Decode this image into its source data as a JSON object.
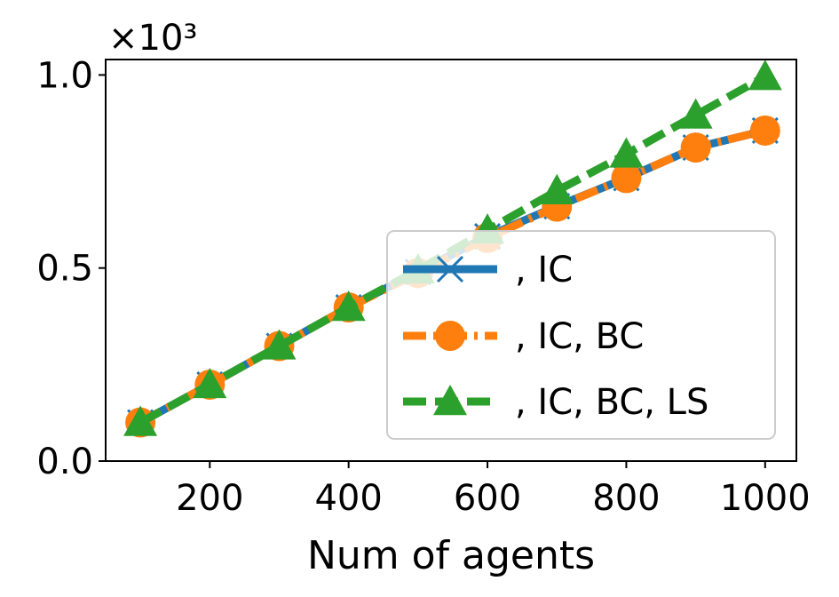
{
  "chart_data": {
    "type": "line",
    "title": "",
    "xlabel": "Num of agents",
    "ylabel": "",
    "y_offset_text": "×10³",
    "x": [
      100,
      200,
      300,
      400,
      500,
      600,
      700,
      800,
      900,
      1000
    ],
    "xlim": [
      50,
      1045
    ],
    "ylim": [
      0,
      1.04
    ],
    "x_ticks": [
      200,
      400,
      600,
      800,
      1000
    ],
    "x_tick_labels": [
      "200",
      "400",
      "600",
      "800",
      "1000"
    ],
    "y_ticks": [
      0,
      0.5,
      1.0
    ],
    "y_tick_labels": [
      "0.0",
      "0.5",
      "1.0"
    ],
    "grid": false,
    "legend_position": "center-right",
    "series": [
      {
        "name": ", IC",
        "color": "#1f77b4",
        "marker": "x",
        "line_style": "solid",
        "values": [
          0.1,
          0.198,
          0.298,
          0.398,
          0.49,
          0.582,
          0.66,
          0.733,
          0.812,
          0.856
        ]
      },
      {
        "name": ", IC, BC",
        "color": "#ff7f0e",
        "marker": "circle",
        "line_style": "dashdot",
        "values": [
          0.1,
          0.198,
          0.298,
          0.398,
          0.487,
          0.578,
          0.659,
          0.733,
          0.812,
          0.856
        ]
      },
      {
        "name": ", IC, BC, LS",
        "color": "#2ca02c",
        "marker": "triangle",
        "line_style": "dashed",
        "values": [
          0.1,
          0.198,
          0.298,
          0.398,
          0.495,
          0.598,
          0.7,
          0.795,
          0.896,
          0.996
        ]
      }
    ]
  }
}
